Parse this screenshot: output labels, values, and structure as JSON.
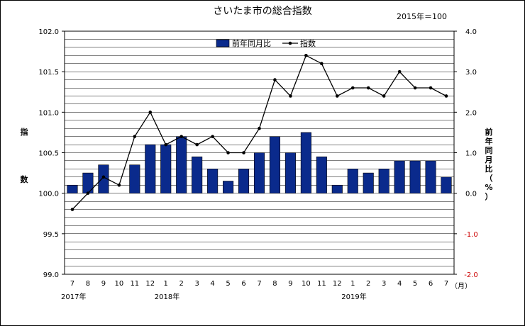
{
  "chart_data": {
    "type": "bar+line",
    "title": "さいたま市の総合指数",
    "base_note": "2015年＝100",
    "left_axis": {
      "label_chars": [
        "指",
        "数"
      ],
      "ylim": [
        99.0,
        102.0
      ],
      "ticks": [
        "99.0",
        "99.5",
        "100.0",
        "100.5",
        "101.0",
        "101.5",
        "102.0"
      ],
      "tick_values": [
        99.0,
        99.5,
        100.0,
        100.5,
        101.0,
        101.5,
        102.0
      ]
    },
    "right_axis": {
      "label_chars": [
        "前",
        "年",
        "同",
        "月",
        "比",
        "（",
        "%",
        "）"
      ],
      "ylim": [
        -2.0,
        4.0
      ],
      "ticks": [
        "-2.0",
        "-1.0",
        "0.0",
        "1.0",
        "2.0",
        "3.0",
        "4.0"
      ],
      "tick_values": [
        -2.0,
        -1.0,
        0.0,
        1.0,
        2.0,
        3.0,
        4.0
      ],
      "negative_color": "#cc0000"
    },
    "categories": [
      "7",
      "8",
      "9",
      "10",
      "11",
      "12",
      "1",
      "2",
      "3",
      "4",
      "5",
      "6",
      "7",
      "8",
      "9",
      "10",
      "11",
      "12",
      "1",
      "2",
      "3",
      "4",
      "5",
      "6",
      "7"
    ],
    "month_unit": "（月）",
    "year_labels": [
      {
        "text": "2017年",
        "index": 0
      },
      {
        "text": "2018年",
        "index": 6
      },
      {
        "text": "2019年",
        "index": 18
      }
    ],
    "series": [
      {
        "name": "前年同月比",
        "kind": "bar",
        "axis": "right",
        "color": "#0a2a8c",
        "values": [
          0.2,
          0.5,
          0.7,
          0.0,
          0.7,
          1.2,
          1.2,
          1.4,
          0.9,
          0.6,
          0.3,
          0.6,
          1.0,
          1.4,
          1.0,
          1.5,
          0.9,
          0.2,
          0.6,
          0.5,
          0.6,
          0.8,
          0.8,
          0.8,
          0.4
        ]
      },
      {
        "name": "指数",
        "kind": "line",
        "axis": "left",
        "color": "#000000",
        "values": [
          99.8,
          100.0,
          100.2,
          100.1,
          100.7,
          101.0,
          100.6,
          100.7,
          100.6,
          100.7,
          100.5,
          100.5,
          100.8,
          101.4,
          101.2,
          101.7,
          101.6,
          101.2,
          101.3,
          101.3,
          101.2,
          101.5,
          101.3,
          101.3,
          101.2
        ]
      }
    ],
    "grid": true,
    "legend_position": "top-center"
  }
}
